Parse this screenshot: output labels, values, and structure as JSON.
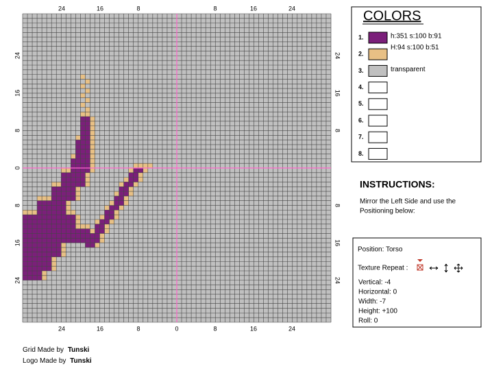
{
  "grid": {
    "top_labels": [
      "24",
      "16",
      "8",
      "8",
      "16",
      "24"
    ],
    "bottom_labels": [
      "24",
      "16",
      "8",
      "0",
      "8",
      "16",
      "24"
    ],
    "left_labels": [
      "24",
      "16",
      "8",
      "0",
      "8",
      "16",
      "24"
    ],
    "right_labels": [
      "24",
      "16",
      "8",
      "8",
      "16",
      "24"
    ]
  },
  "colors": {
    "title": "COLORS",
    "items": [
      {
        "number": "1.",
        "color": "#7b1f7a",
        "text": "h:351 s:100 b:91"
      },
      {
        "number": "2.",
        "color": "#e8c085",
        "text": "H:94 s:100 b:51"
      },
      {
        "number": "3.",
        "color": "#c0c0c0",
        "text": "transparent"
      },
      {
        "number": "4.",
        "color": "#ffffff"
      },
      {
        "number": "5.",
        "color": "#ffffff"
      },
      {
        "number": "6.",
        "color": "#ffffff"
      },
      {
        "number": "7.",
        "color": "#ffffff"
      },
      {
        "number": "8.",
        "color": "#ffffff"
      }
    ]
  },
  "instructions": {
    "title": "INSTRUCTIONS:",
    "text_lines": [
      "Mirror the Left Side and use the",
      "Positioning below:"
    ]
  },
  "position": {
    "title": "Position: Torso",
    "texture_repeat": "Texture Repeat :",
    "lines": [
      "Vertical: -4",
      "Horizontal: 0",
      "Width: -7",
      "Height: +100",
      "Roll: 0"
    ]
  },
  "footer": [
    {
      "text": "Grid Made by ",
      "name": "Tunski"
    },
    {
      "text": "Logo Made by ",
      "name": "Tunski"
    }
  ]
}
